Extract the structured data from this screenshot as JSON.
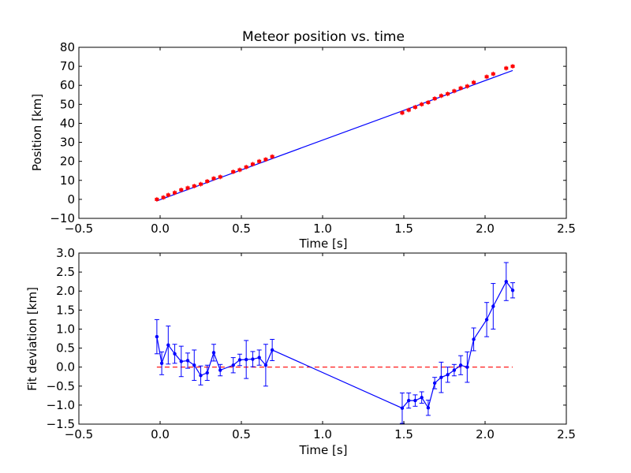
{
  "chart_data": [
    {
      "type": "scatter",
      "title": "Meteor position vs. time",
      "xlabel": "Time [s]",
      "ylabel": "Position [km]",
      "xlim": [
        -0.5,
        2.5
      ],
      "ylim": [
        -10,
        80
      ],
      "xticks": [
        -0.5,
        0.0,
        0.5,
        1.0,
        1.5,
        2.0,
        2.5
      ],
      "xtick_labels": [
        "−0.5",
        "0.0",
        "0.5",
        "1.0",
        "1.5",
        "2.0",
        "2.5"
      ],
      "yticks": [
        -10,
        0,
        10,
        20,
        30,
        40,
        50,
        60,
        70,
        80
      ],
      "ytick_labels": [
        "−10",
        "0",
        "10",
        "20",
        "30",
        "40",
        "50",
        "60",
        "70",
        "80"
      ],
      "grid": false,
      "series": [
        {
          "style": "red points with error bars",
          "color": "#ff0000",
          "x": [
            -0.02,
            0.02,
            0.05,
            0.09,
            0.13,
            0.17,
            0.21,
            0.25,
            0.29,
            0.33,
            0.37,
            0.45,
            0.49,
            0.53,
            0.57,
            0.61,
            0.65,
            0.69,
            1.49,
            1.53,
            1.57,
            1.61,
            1.65,
            1.69,
            1.73,
            1.77,
            1.81,
            1.85,
            1.89,
            1.93,
            2.01,
            2.05,
            2.13,
            2.17
          ],
          "y": [
            0.0,
            1.0,
            2.3,
            3.5,
            5.0,
            6.0,
            7.0,
            8.0,
            9.5,
            11.0,
            11.8,
            14.5,
            15.5,
            17.0,
            18.5,
            20.0,
            21.0,
            22.5,
            45.5,
            47.0,
            48.5,
            50.0,
            51.0,
            53.0,
            54.5,
            55.5,
            57.0,
            58.5,
            59.5,
            61.5,
            64.5,
            66.0,
            69.0,
            70.0
          ]
        },
        {
          "style": "blue linear fit",
          "color": "#0000ff",
          "x": [
            -0.02,
            2.17
          ],
          "y": [
            -0.8,
            67.8
          ]
        }
      ]
    },
    {
      "type": "line",
      "xlabel": "Time [s]",
      "ylabel": "Fit deviation [km]",
      "xlim": [
        -0.5,
        2.5
      ],
      "ylim": [
        -1.5,
        3.0
      ],
      "xticks": [
        -0.5,
        0.0,
        0.5,
        1.0,
        1.5,
        2.0,
        2.5
      ],
      "xtick_labels": [
        "−0.5",
        "0.0",
        "0.5",
        "1.0",
        "1.5",
        "2.0",
        "2.5"
      ],
      "yticks": [
        -1.5,
        -1.0,
        -0.5,
        0.0,
        0.5,
        1.0,
        1.5,
        2.0,
        2.5,
        3.0
      ],
      "ytick_labels": [
        "−1.5",
        "−1.0",
        "−0.5",
        "0.0",
        "0.5",
        "1.0",
        "1.5",
        "2.0",
        "2.5",
        "3.0"
      ],
      "grid": false,
      "series": [
        {
          "style": "blue line with markers and error bars",
          "color": "#0000ff",
          "x": [
            -0.02,
            0.01,
            0.05,
            0.09,
            0.13,
            0.17,
            0.21,
            0.25,
            0.29,
            0.33,
            0.37,
            0.45,
            0.49,
            0.53,
            0.57,
            0.61,
            0.65,
            0.69,
            1.49,
            1.53,
            1.57,
            1.61,
            1.65,
            1.69,
            1.73,
            1.77,
            1.81,
            1.85,
            1.89,
            1.93,
            2.01,
            2.05,
            2.13,
            2.17
          ],
          "y": [
            0.8,
            0.1,
            0.58,
            0.35,
            0.15,
            0.17,
            0.05,
            -0.22,
            -0.15,
            0.38,
            -0.08,
            0.05,
            0.19,
            0.2,
            0.21,
            0.25,
            0.05,
            0.45,
            -1.08,
            -0.88,
            -0.88,
            -0.8,
            -1.07,
            -0.42,
            -0.27,
            -0.2,
            -0.08,
            0.05,
            0.0,
            0.73,
            1.25,
            1.6,
            2.25,
            2.02
          ],
          "yerr": [
            0.45,
            0.3,
            0.5,
            0.25,
            0.4,
            0.2,
            0.4,
            0.25,
            0.2,
            0.22,
            0.15,
            0.2,
            0.15,
            0.5,
            0.2,
            0.2,
            0.55,
            0.28,
            0.4,
            0.2,
            0.15,
            0.15,
            0.2,
            0.15,
            0.4,
            0.2,
            0.15,
            0.25,
            0.4,
            0.3,
            0.45,
            0.6,
            0.5,
            0.2
          ]
        },
        {
          "style": "red dashed zero reference",
          "color": "#ff0000",
          "x": [
            -0.02,
            2.17
          ],
          "y": [
            0.0,
            0.0
          ]
        }
      ]
    }
  ]
}
